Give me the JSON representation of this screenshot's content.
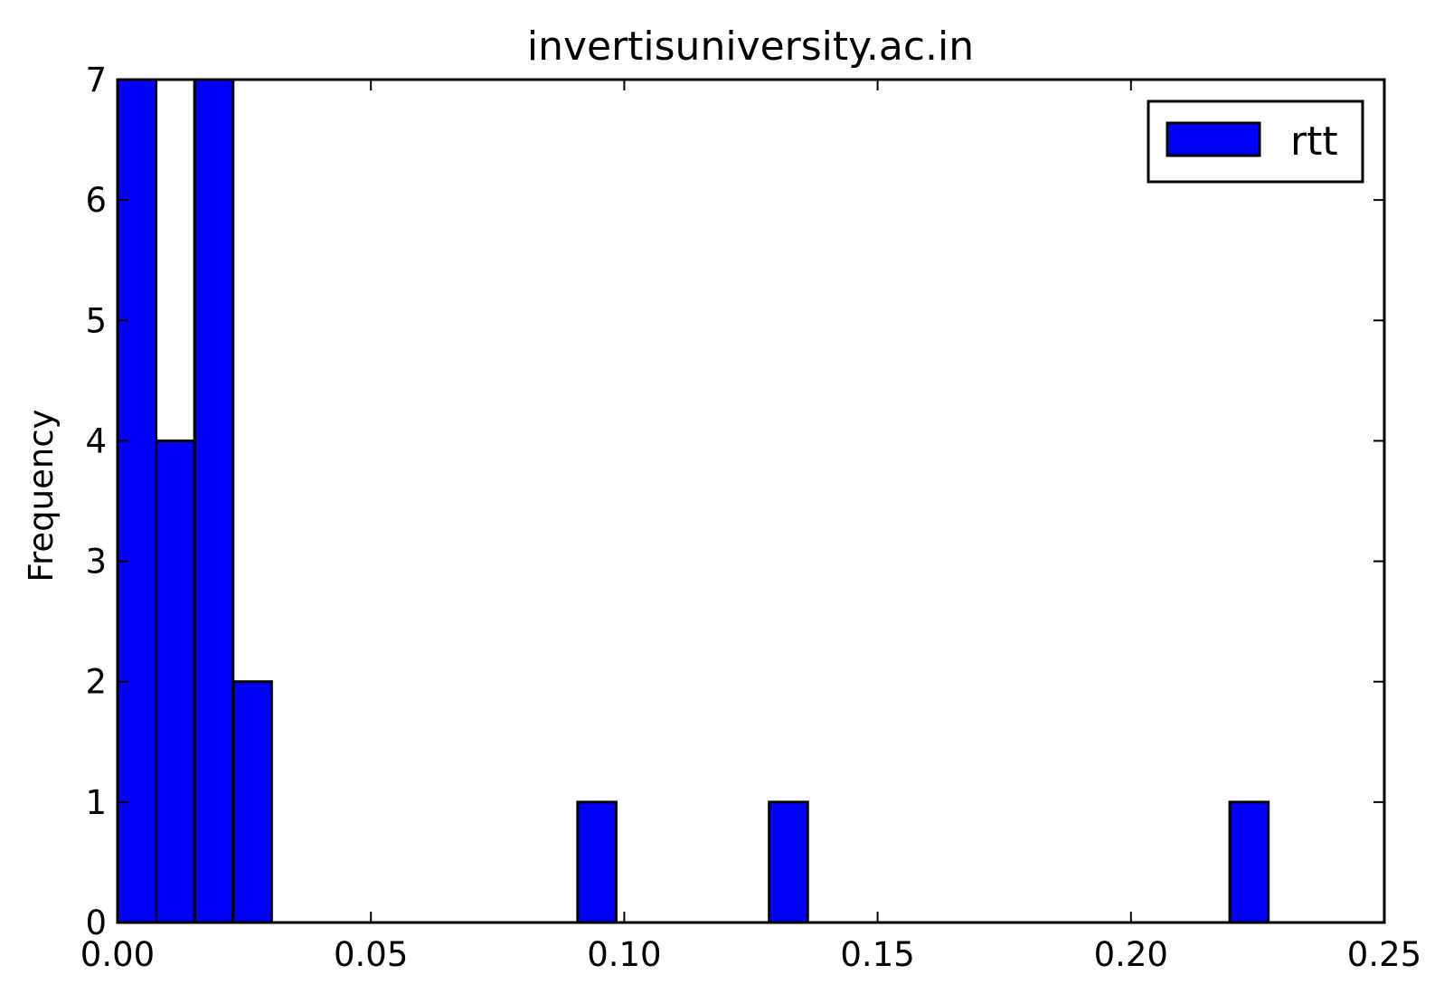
{
  "chart_data": {
    "type": "bar",
    "title": "invertisuniversity.ac.in",
    "xlabel": "",
    "ylabel": "Frequency",
    "xlim": [
      0.0,
      0.25
    ],
    "ylim": [
      0,
      7
    ],
    "grid": false,
    "legend_position": "top-right",
    "bar_color": "#0000ff",
    "edge_color": "#000000",
    "series": [
      {
        "name": "rtt",
        "bins": [
          {
            "x0": 0.0,
            "x1": 0.0076,
            "count": 7
          },
          {
            "x0": 0.0076,
            "x1": 0.0152,
            "count": 4
          },
          {
            "x0": 0.0152,
            "x1": 0.0228,
            "count": 7
          },
          {
            "x0": 0.0228,
            "x1": 0.0304,
            "count": 2
          },
          {
            "x0": 0.0908,
            "x1": 0.0984,
            "count": 1
          },
          {
            "x0": 0.1286,
            "x1": 0.1362,
            "count": 1
          },
          {
            "x0": 0.2195,
            "x1": 0.2271,
            "count": 1
          }
        ]
      }
    ],
    "x_ticks": [
      {
        "value": 0.0,
        "label": "0.00"
      },
      {
        "value": 0.05,
        "label": "0.05"
      },
      {
        "value": 0.1,
        "label": "0.10"
      },
      {
        "value": 0.15,
        "label": "0.15"
      },
      {
        "value": 0.2,
        "label": "0.20"
      },
      {
        "value": 0.25,
        "label": "0.25"
      }
    ],
    "y_ticks": [
      {
        "value": 0,
        "label": "0"
      },
      {
        "value": 1,
        "label": "1"
      },
      {
        "value": 2,
        "label": "2"
      },
      {
        "value": 3,
        "label": "3"
      },
      {
        "value": 4,
        "label": "4"
      },
      {
        "value": 5,
        "label": "5"
      },
      {
        "value": 6,
        "label": "6"
      },
      {
        "value": 7,
        "label": "7"
      }
    ],
    "legend": [
      {
        "label": "rtt",
        "color": "#0000ff"
      }
    ]
  }
}
